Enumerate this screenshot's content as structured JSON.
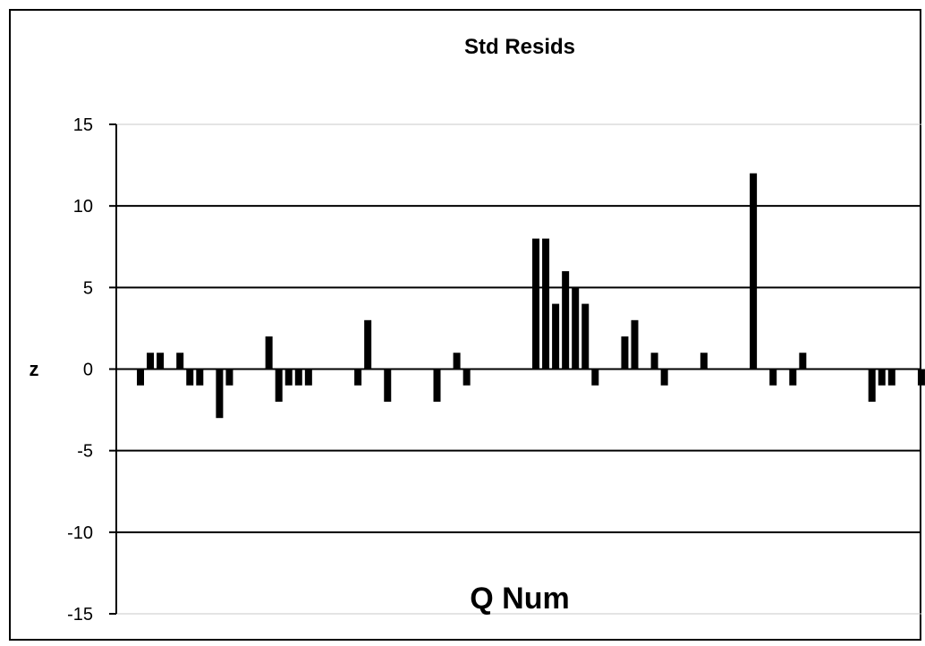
{
  "chart_data": {
    "type": "bar",
    "title": "Std Resids",
    "xlabel": "Q Num",
    "ylabel": "z",
    "ylim": [
      -15,
      15
    ],
    "yticks": [
      15,
      10,
      5,
      0,
      -5,
      -10,
      -15
    ],
    "grid": true,
    "legend": "none",
    "bar_color": "#000000",
    "x": [
      1,
      2,
      3,
      4,
      5,
      6,
      7,
      8,
      9,
      10,
      11,
      12,
      13,
      14,
      15,
      16,
      17,
      18,
      19,
      20,
      21,
      22,
      23,
      24,
      25,
      26,
      27,
      28,
      29,
      30,
      31,
      32,
      33,
      34,
      35,
      36,
      37,
      38,
      39,
      40,
      41,
      42,
      43,
      44,
      45,
      46,
      47,
      48,
      49,
      50,
      51,
      52,
      53,
      54,
      55,
      56,
      57,
      58,
      59,
      60,
      61,
      62,
      63,
      64,
      65,
      66,
      67,
      68,
      69,
      70,
      71,
      72,
      73,
      74,
      75,
      76,
      77,
      78,
      79,
      80,
      81,
      82,
      83,
      84,
      85
    ],
    "values": [
      -1,
      1,
      1,
      0,
      1,
      -1,
      -1,
      0,
      -3,
      -1,
      0,
      0,
      0,
      2,
      -2,
      -1,
      -1,
      -1,
      0,
      0,
      0,
      0,
      -1,
      3,
      0,
      -2,
      0,
      0,
      0,
      0,
      -2,
      0,
      1,
      -1,
      0,
      0,
      0,
      0,
      0,
      0,
      8,
      8,
      4,
      6,
      5,
      4,
      -1,
      0,
      0,
      2,
      3,
      0,
      1,
      -1,
      0,
      0,
      0,
      1,
      0,
      0,
      0,
      0,
      12,
      0,
      -1,
      0,
      -1,
      1,
      0,
      0,
      0,
      0,
      0,
      0,
      -2,
      -1,
      -1,
      0,
      0,
      -1,
      0,
      0,
      0,
      0,
      0
    ]
  }
}
